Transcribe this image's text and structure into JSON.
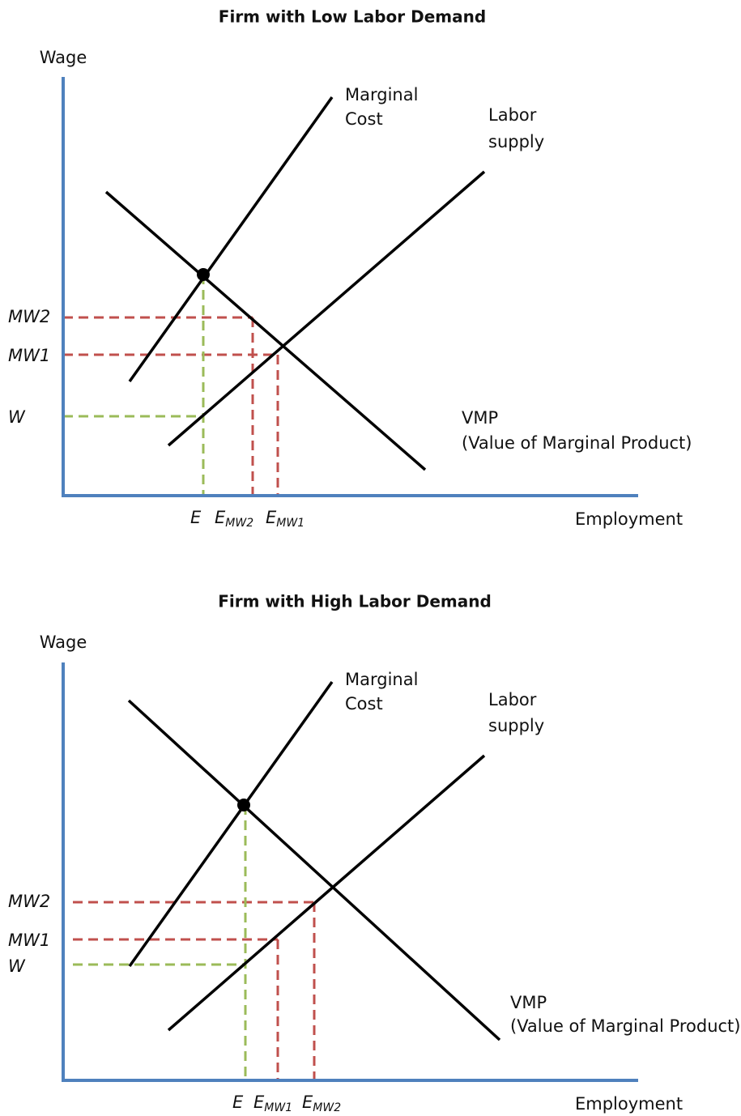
{
  "panels": [
    {
      "title": "Firm with Low Labor Demand",
      "y_axis_label": "Wage",
      "x_axis_label": "Employment",
      "marginal_cost_label": [
        "Marginal",
        "Cost"
      ],
      "labor_supply_label": [
        "Labor",
        "supply"
      ],
      "vmp_label": [
        "VMP",
        "(Value of Marginal Product)"
      ],
      "wage_labels": [
        "MW2",
        "MW1",
        "W"
      ],
      "employment_labels": [
        {
          "main": "E"
        },
        {
          "main": "E",
          "sub": "MW2"
        },
        {
          "main": "E",
          "sub": "MW1"
        }
      ]
    },
    {
      "title": "Firm with High Labor Demand",
      "y_axis_label": "Wage",
      "x_axis_label": "Employment",
      "marginal_cost_label": [
        "Marginal",
        "Cost"
      ],
      "labor_supply_label": [
        "Labor",
        "supply"
      ],
      "vmp_label": [
        "VMP",
        "(Value of Marginal Product)"
      ],
      "wage_labels": [
        "MW2",
        "MW1",
        "W"
      ],
      "employment_labels": [
        {
          "main": "E"
        },
        {
          "main": "E",
          "sub": "MW1"
        },
        {
          "main": "E",
          "sub": "MW2"
        }
      ]
    }
  ]
}
